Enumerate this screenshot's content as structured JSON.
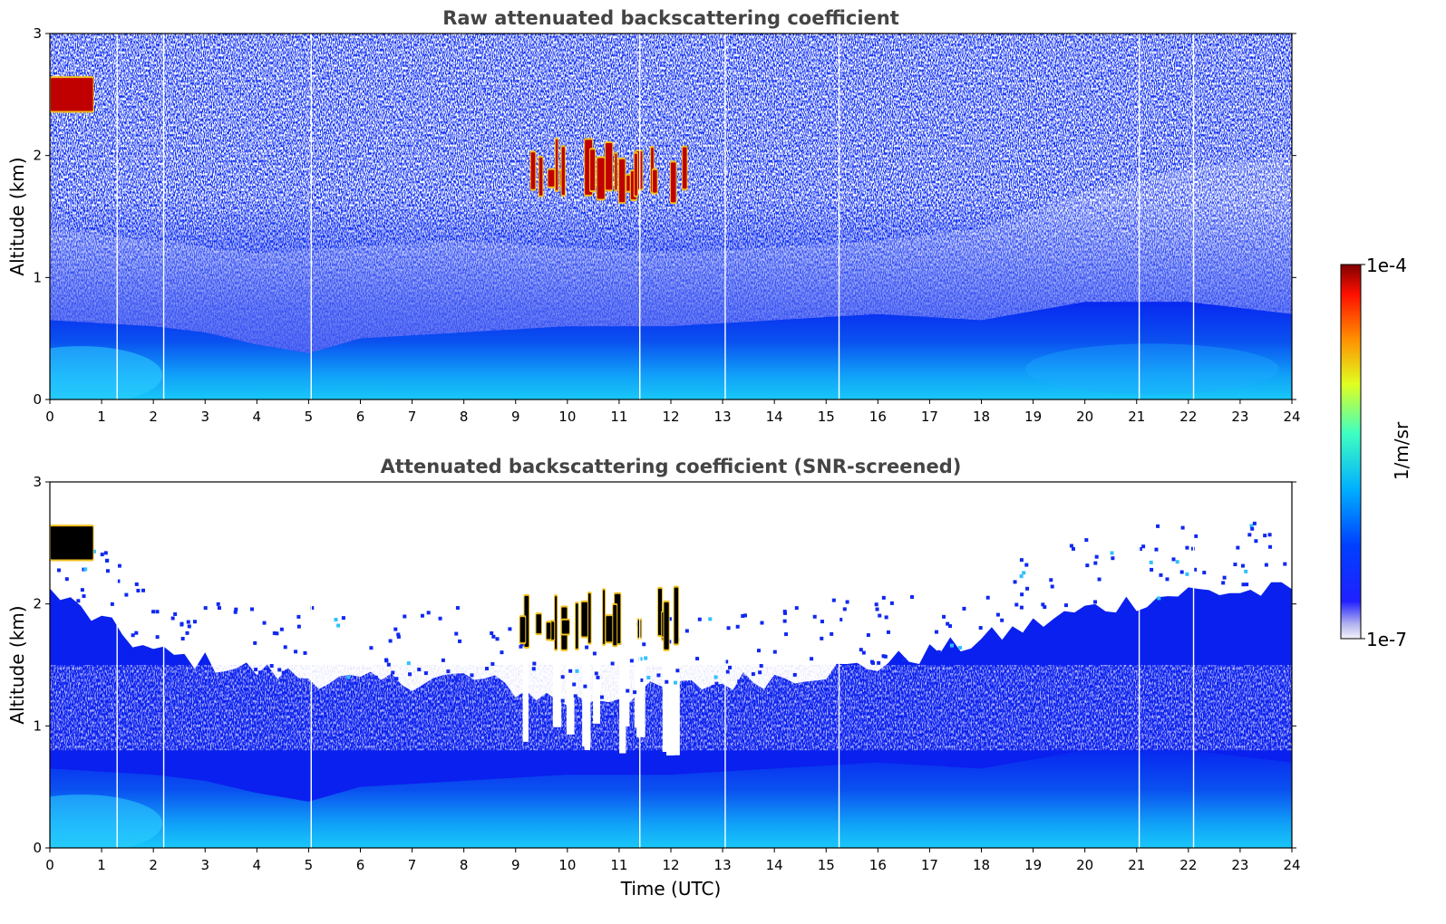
{
  "chart_data": [
    {
      "type": "heatmap",
      "title": "Raw attenuated backscattering coefficient",
      "xlabel": "",
      "ylabel": "Altitude (km)",
      "xlim": [
        0,
        24
      ],
      "ylim": [
        0,
        3
      ],
      "xticks": [
        "0",
        "1",
        "2",
        "3",
        "4",
        "5",
        "6",
        "7",
        "8",
        "9",
        "10",
        "11",
        "12",
        "13",
        "14",
        "15",
        "16",
        "17",
        "18",
        "19",
        "20",
        "21",
        "22",
        "23",
        "24"
      ],
      "yticks": [
        "0",
        "1",
        "2",
        "3"
      ],
      "features": {
        "boundary_layer_top_km": [
          [
            0,
            0.65
          ],
          [
            2,
            0.6
          ],
          [
            3,
            0.55
          ],
          [
            4,
            0.45
          ],
          [
            5,
            0.38
          ],
          [
            6,
            0.5
          ],
          [
            8,
            0.55
          ],
          [
            10,
            0.6
          ],
          [
            12,
            0.6
          ],
          [
            14,
            0.65
          ],
          [
            16,
            0.7
          ],
          [
            18,
            0.65
          ],
          [
            20,
            0.8
          ],
          [
            22,
            0.8
          ],
          [
            24,
            0.7
          ]
        ],
        "residual_layer_top_km": [
          [
            0,
            1.4
          ],
          [
            4,
            1.2
          ],
          [
            8,
            1.3
          ],
          [
            12,
            1.2
          ],
          [
            16,
            1.3
          ],
          [
            18,
            1.4
          ],
          [
            20,
            1.7
          ],
          [
            22,
            1.9
          ],
          [
            24,
            2.0
          ]
        ],
        "cloud_patches": [
          {
            "t_start": 0.0,
            "t_end": 0.85,
            "alt_low_km": 2.35,
            "alt_high_km": 2.65
          },
          {
            "t_start": 8.9,
            "t_end": 12.3,
            "alt_low_km": 1.6,
            "alt_high_km": 2.15
          }
        ],
        "data_gaps_utc": [
          1.3,
          2.2,
          5.05,
          11.4,
          13.05,
          15.25,
          21.05,
          22.1
        ]
      }
    },
    {
      "type": "heatmap",
      "title": "Attenuated backscattering coefficient (SNR-screened)",
      "xlabel": "Time (UTC)",
      "ylabel": "Altitude (km)",
      "xlim": [
        0,
        24
      ],
      "ylim": [
        0,
        3
      ],
      "xticks": [
        "0",
        "1",
        "2",
        "3",
        "4",
        "5",
        "6",
        "7",
        "8",
        "9",
        "10",
        "11",
        "12",
        "13",
        "14",
        "15",
        "16",
        "17",
        "18",
        "19",
        "20",
        "21",
        "22",
        "23",
        "24"
      ],
      "yticks": [
        "0",
        "1",
        "2",
        "3"
      ],
      "features": {
        "screened_top_km": [
          [
            0,
            2.1
          ],
          [
            2,
            1.6
          ],
          [
            4,
            1.45
          ],
          [
            6,
            1.35
          ],
          [
            8,
            1.4
          ],
          [
            10,
            1.2
          ],
          [
            12,
            1.3
          ],
          [
            14,
            1.4
          ],
          [
            16,
            1.5
          ],
          [
            18,
            1.7
          ],
          [
            20,
            1.95
          ],
          [
            22,
            2.1
          ],
          [
            24,
            2.1
          ]
        ],
        "cloud_patches": [
          {
            "t_start": 0.0,
            "t_end": 0.85,
            "alt_low_km": 2.35,
            "alt_high_km": 2.65
          },
          {
            "t_start": 8.9,
            "t_end": 12.3,
            "alt_low_km": 1.6,
            "alt_high_km": 2.15
          }
        ],
        "data_gaps_utc": [
          1.3,
          2.2,
          5.05,
          11.4,
          13.05,
          15.25,
          21.05,
          22.1
        ]
      }
    }
  ],
  "colorbar": {
    "label": "1/m/sr",
    "max_label": "1e-4",
    "min_label": "1e-7",
    "scale": "log",
    "range": [
      1e-07,
      0.0001
    ],
    "colormap": "jet"
  }
}
